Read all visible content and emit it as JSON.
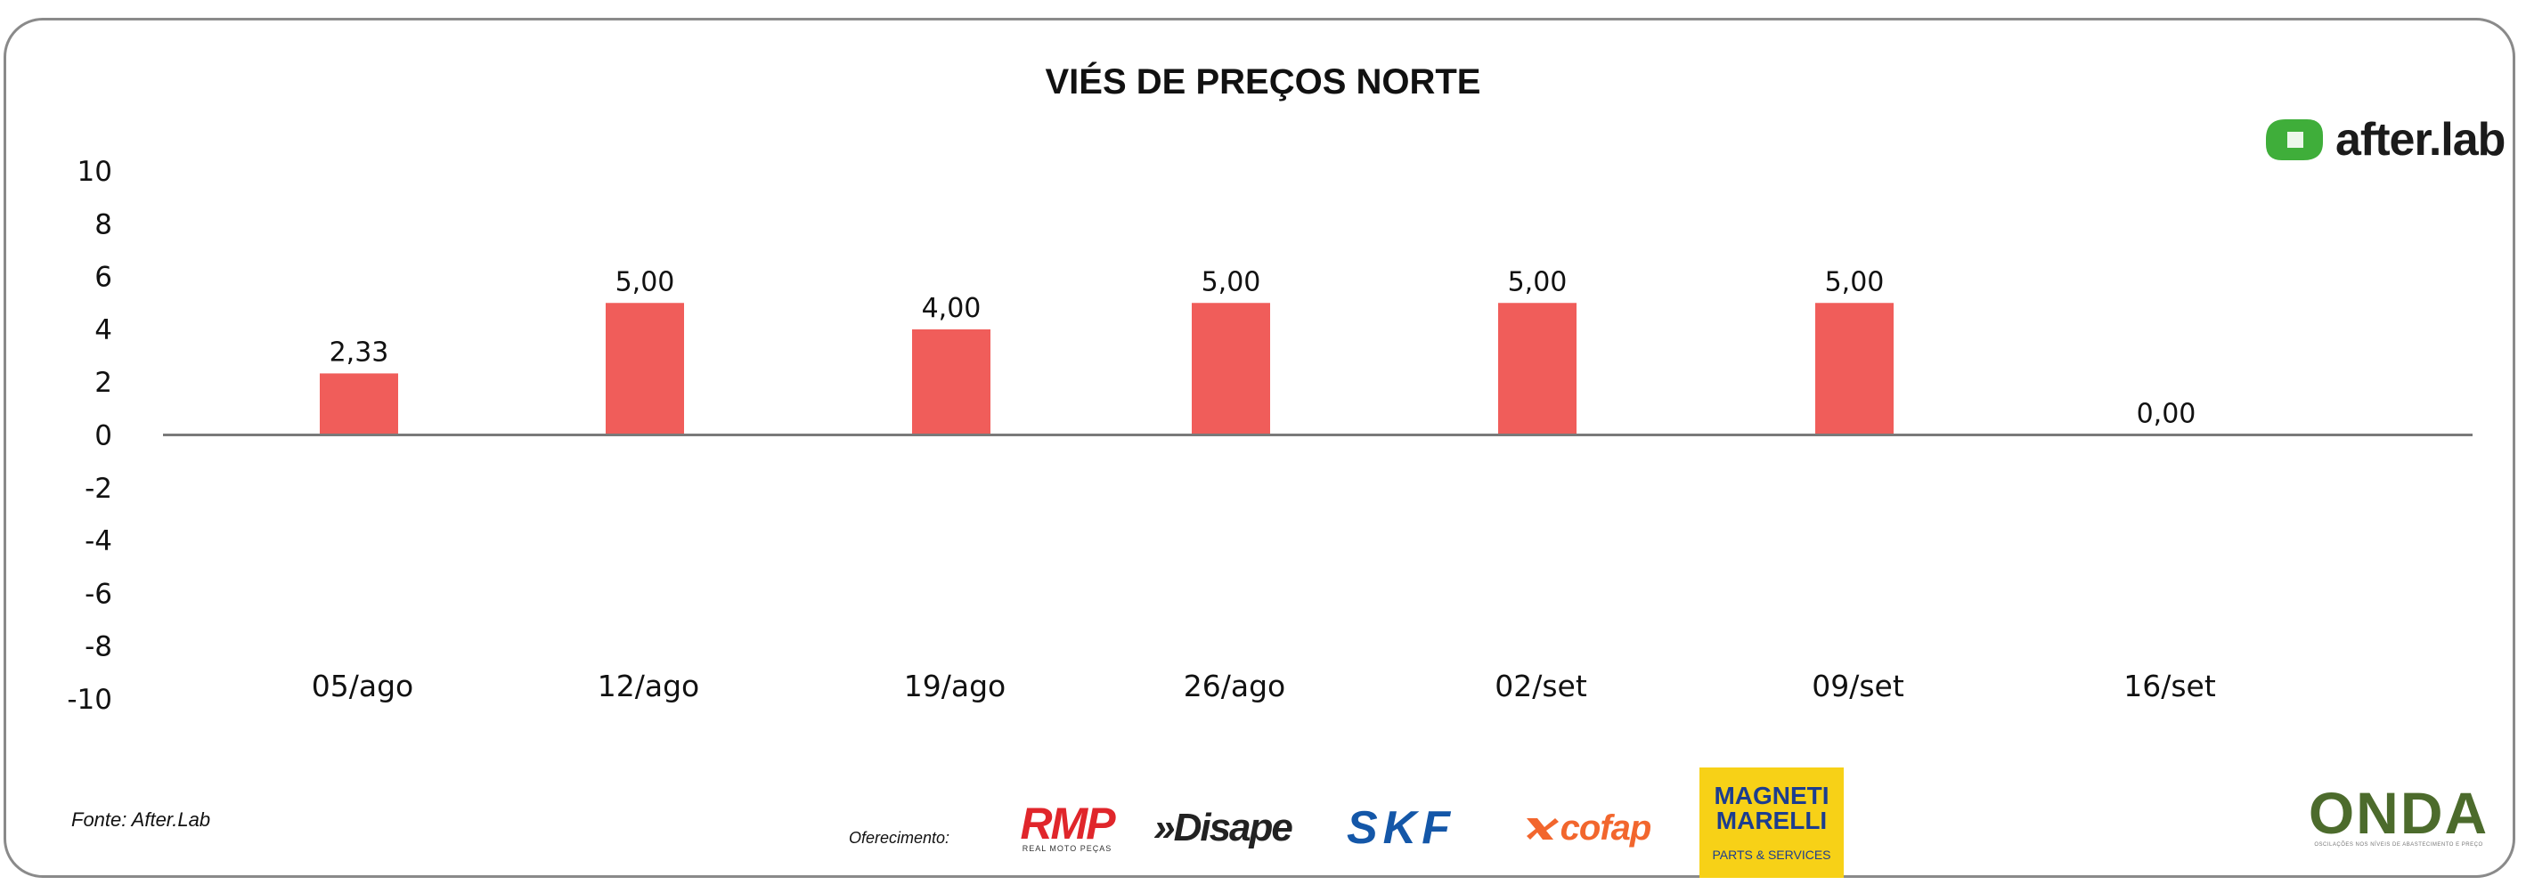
{
  "chart_data": {
    "type": "bar",
    "title": "VIÉS DE PREÇOS NORTE",
    "categories": [
      "05/ago",
      "12/ago",
      "19/ago",
      "26/ago",
      "02/set",
      "09/set",
      "16/set"
    ],
    "values": [
      2.33,
      5.0,
      4.0,
      5.0,
      5.0,
      5.0,
      0.0
    ],
    "data_labels": [
      "2,33",
      "5,00",
      "4,00",
      "5,00",
      "5,00",
      "5,00",
      "0,00"
    ],
    "y_ticks": [
      "10",
      "8",
      "6",
      "4",
      "2",
      "0",
      "-2",
      "-4",
      "-6",
      "-8",
      "-10"
    ],
    "ylim": [
      -10,
      10
    ],
    "xlabel": "",
    "ylabel": "",
    "grid": false,
    "bar_color": "#f05d5a",
    "axis_color": "#7a7a7a"
  },
  "footer": {
    "source": "Fonte: After.Lab",
    "sponsor_caption": "Oferecimento:"
  },
  "logos": {
    "brand": "after.lab",
    "rmp": "RMP",
    "rmp_tagline": "REAL MOTO PEÇAS",
    "disape": "»Disape",
    "skf": "SKF",
    "cofap": "cofap",
    "magneti": "MAGNETI MARELLI",
    "magneti_sub": "PARTS & SERVICES",
    "onda": "ONDA",
    "onda_tagline": "OSCILAÇÕES NOS NÍVEIS DE ABASTECIMENTO E PREÇO"
  }
}
